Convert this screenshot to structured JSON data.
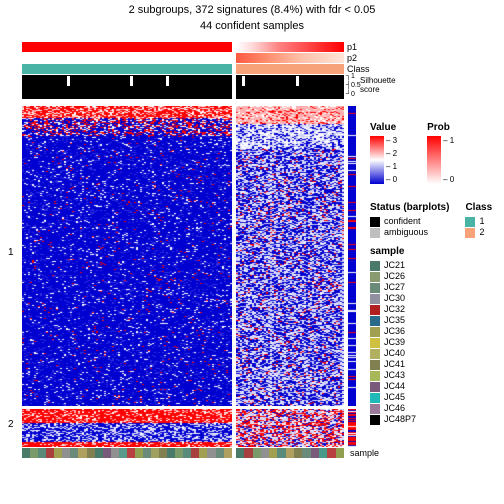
{
  "title_line1": "2 subgroups, 372 signatures (8.4%) with fdr < 0.05",
  "title_line2": "44 confident samples",
  "layout": {
    "group1_width": 210,
    "group2_width": 108,
    "gap": 4,
    "annotation_row_height": 10,
    "silhouette_height": 22,
    "heatmap_group1_height": 300,
    "heatmap_group2_height": 38,
    "bottom_track_height": 10
  },
  "annotation_labels": {
    "p1": "p1",
    "p2": "p2",
    "class": "Class",
    "silhouette": "Silhouette\nscore",
    "sample": "sample"
  },
  "silhouette_ticks": [
    "1",
    "0.5",
    "0"
  ],
  "row_labels": {
    "g1": "1",
    "g2": "2"
  },
  "annot_colors": {
    "p1_g1": "#ff0000",
    "p1_g2_blend": "linear-gradient(90deg,#ffffff 0%,#ffdada 15%,#ff8080 40%,#ff0000 100%)",
    "p2_g1": "#ffffff",
    "p2_g2": "linear-gradient(90deg,#ff5a40 0%,#ff9070 30%,#ffc0a8 60%,#ffe4d8 100%)",
    "class_g1": "#49b3a6",
    "class_g2": "#f8a27a",
    "sil_g1_bg": "#000000",
    "sil_g2_bg": "#000000"
  },
  "heatmap_colors": {
    "blue": "#0000d0",
    "midblue": "#3030e0",
    "pale": "#d0d0f8",
    "white": "#ffffff",
    "pink": "#ffb0b0",
    "red": "#ff0000"
  },
  "bottom_sample_g1": [
    "#4a7a6a",
    "#7a9a6a",
    "#5a8a7a",
    "#a84040",
    "#a0a050",
    "#909090",
    "#6a8a7a",
    "#b0a060",
    "#808050",
    "#4a7a6a",
    "#7a5a7a",
    "#909090",
    "#5a9a8a",
    "#b84040",
    "#90a050",
    "#6a8a7a",
    "#a0a060",
    "#808050",
    "#4a7a6a",
    "#7a9a6a",
    "#5a8a7a",
    "#a84040",
    "#a0a050",
    "#909090",
    "#6a8a7a",
    "#b0a060"
  ],
  "bottom_sample_g2": [
    "#4a7a6a",
    "#a84040",
    "#7a9a6a",
    "#909090",
    "#a0a050",
    "#5a8a7a",
    "#b0a060",
    "#808050",
    "#6a8a7a",
    "#7a5a7a",
    "#4a9a8a",
    "#b84040",
    "#90a050"
  ],
  "legends": {
    "value": {
      "title": "Value",
      "gradient": "linear-gradient(to top,#0000d0 0%,#ffffff 50%,#ff0000 100%)",
      "ticks": [
        "3",
        "2",
        "1",
        "0"
      ]
    },
    "prob": {
      "title": "Prob",
      "gradient": "linear-gradient(to top,#ffffff 0%,#ff0000 100%)",
      "ticks": [
        "1",
        "0"
      ]
    },
    "status": {
      "title": "Status (barplots)",
      "items": [
        {
          "label": "confident",
          "color": "#000000"
        },
        {
          "label": "ambiguous",
          "color": "#bfbfbf"
        }
      ]
    },
    "class": {
      "title": "Class",
      "items": [
        {
          "label": "1",
          "color": "#49b3a6"
        },
        {
          "label": "2",
          "color": "#f8a27a"
        }
      ]
    },
    "sample": {
      "title": "sample",
      "items": [
        {
          "label": "JC21",
          "color": "#4a7a6a"
        },
        {
          "label": "JC26",
          "color": "#8a9a70"
        },
        {
          "label": "JC27",
          "color": "#6a8a7a"
        },
        {
          "label": "JC30",
          "color": "#9090a0"
        },
        {
          "label": "JC32",
          "color": "#b02020"
        },
        {
          "label": "JC35",
          "color": "#2a6a8a"
        },
        {
          "label": "JC36",
          "color": "#a0a050"
        },
        {
          "label": "JC39",
          "color": "#d0c040"
        },
        {
          "label": "JC40",
          "color": "#b0b060"
        },
        {
          "label": "JC41",
          "color": "#808050"
        },
        {
          "label": "JC43",
          "color": "#a8b858"
        },
        {
          "label": "JC44",
          "color": "#7a5a7a"
        },
        {
          "label": "JC45",
          "color": "#20b8b8"
        },
        {
          "label": "JC46",
          "color": "#9a7a9a"
        },
        {
          "label": "JC48P7",
          "color": "#000000"
        }
      ]
    }
  }
}
